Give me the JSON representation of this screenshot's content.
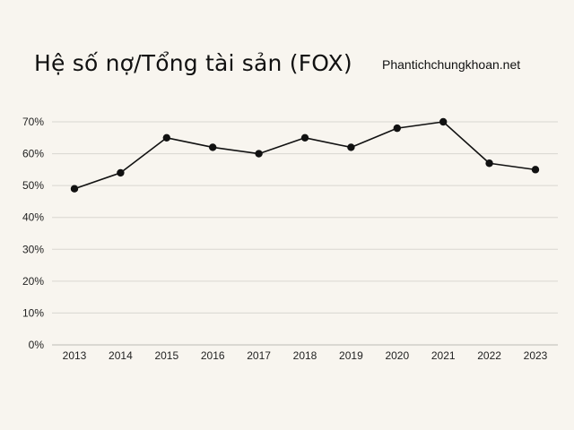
{
  "chart_data": {
    "type": "line",
    "title": "Hệ số nợ/Tổng tài sản (FOX)",
    "watermark": "Phantichchungkhoan.net",
    "x": [
      "2013",
      "2014",
      "2015",
      "2016",
      "2017",
      "2018",
      "2019",
      "2020",
      "2021",
      "2022",
      "2023"
    ],
    "series": [
      {
        "values": [
          49,
          54,
          65,
          62,
          60,
          65,
          62,
          68,
          70,
          57,
          55
        ]
      }
    ],
    "yticks": [
      "0%",
      "10%",
      "20%",
      "30%",
      "40%",
      "50%",
      "60%",
      "70%"
    ],
    "ylim": [
      0,
      70
    ],
    "grid": true,
    "colors": {
      "line": "#111111",
      "grid": "#d9d6d0",
      "background": "#f8f5ef"
    }
  }
}
